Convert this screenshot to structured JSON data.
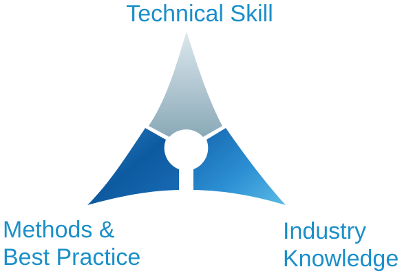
{
  "diagram": {
    "top_label": "Technical Skill",
    "left_label_line1": "Methods &",
    "left_label_line2": "Best Practice",
    "right_label_line1": "Industry",
    "right_label_line2": "Knowledge",
    "colors": {
      "label": "#1a8fc9",
      "top_segment_light": "#dce8ee",
      "top_segment_dark": "#8aa9b7",
      "bottom_blue_dark": "#0d5aa0",
      "bottom_blue_light": "#5bbbe6"
    }
  }
}
